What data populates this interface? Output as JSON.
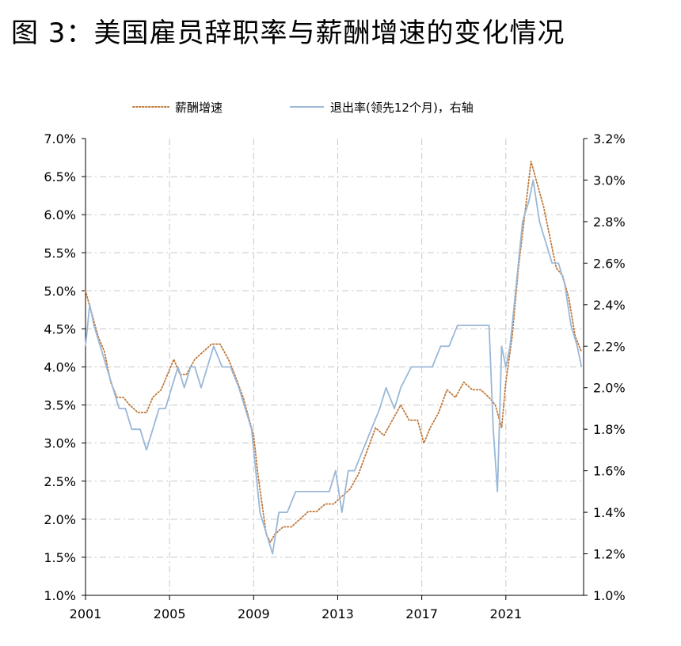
{
  "title": "图 3：美国雇员辞职率与薪酬增速的变化情况",
  "chart_data": {
    "type": "line",
    "x_range": [
      2001,
      2024.7
    ],
    "x_ticks": [
      "2001",
      "2005",
      "2009",
      "2013",
      "2017",
      "2021"
    ],
    "y_left_ticks": [
      "7.0%",
      "6.5%",
      "6.0%",
      "5.5%",
      "5.0%",
      "4.5%",
      "4.0%",
      "3.5%",
      "3.0%",
      "2.5%",
      "2.0%",
      "1.5%",
      "1.0%"
    ],
    "y_right_ticks": [
      "3.2%",
      "3.0%",
      "2.8%",
      "2.6%",
      "2.4%",
      "2.2%",
      "2.0%",
      "1.8%",
      "1.6%",
      "1.4%",
      "1.2%",
      "1.0%"
    ],
    "y_left_range": [
      1.0,
      7.0
    ],
    "y_right_range": [
      1.0,
      3.2
    ],
    "grid": true,
    "legend_position": "top",
    "series": [
      {
        "name": "薪酬增速",
        "axis": "left",
        "color": "#c0783a",
        "style": "dotted",
        "points": [
          [
            2001.0,
            5.0
          ],
          [
            2001.3,
            4.7
          ],
          [
            2001.6,
            4.4
          ],
          [
            2001.9,
            4.2
          ],
          [
            2002.2,
            3.8
          ],
          [
            2002.5,
            3.6
          ],
          [
            2002.8,
            3.6
          ],
          [
            2003.1,
            3.5
          ],
          [
            2003.5,
            3.4
          ],
          [
            2003.9,
            3.4
          ],
          [
            2004.2,
            3.6
          ],
          [
            2004.6,
            3.7
          ],
          [
            2004.9,
            3.9
          ],
          [
            2005.2,
            4.1
          ],
          [
            2005.5,
            3.9
          ],
          [
            2005.8,
            3.9
          ],
          [
            2006.2,
            4.1
          ],
          [
            2006.6,
            4.2
          ],
          [
            2007.0,
            4.3
          ],
          [
            2007.4,
            4.3
          ],
          [
            2007.8,
            4.1
          ],
          [
            2008.1,
            3.9
          ],
          [
            2008.5,
            3.6
          ],
          [
            2008.8,
            3.3
          ],
          [
            2009.0,
            3.1
          ],
          [
            2009.2,
            2.6
          ],
          [
            2009.4,
            2.2
          ],
          [
            2009.6,
            1.8
          ],
          [
            2009.8,
            1.7
          ],
          [
            2010.0,
            1.8
          ],
          [
            2010.4,
            1.9
          ],
          [
            2010.8,
            1.9
          ],
          [
            2011.2,
            2.0
          ],
          [
            2011.6,
            2.1
          ],
          [
            2012.0,
            2.1
          ],
          [
            2012.4,
            2.2
          ],
          [
            2012.8,
            2.2
          ],
          [
            2013.2,
            2.3
          ],
          [
            2013.6,
            2.4
          ],
          [
            2014.0,
            2.6
          ],
          [
            2014.4,
            2.9
          ],
          [
            2014.8,
            3.2
          ],
          [
            2015.2,
            3.1
          ],
          [
            2015.6,
            3.3
          ],
          [
            2016.0,
            3.5
          ],
          [
            2016.4,
            3.3
          ],
          [
            2016.8,
            3.3
          ],
          [
            2017.1,
            3.0
          ],
          [
            2017.4,
            3.2
          ],
          [
            2017.8,
            3.4
          ],
          [
            2018.2,
            3.7
          ],
          [
            2018.6,
            3.6
          ],
          [
            2019.0,
            3.8
          ],
          [
            2019.4,
            3.7
          ],
          [
            2019.8,
            3.7
          ],
          [
            2020.2,
            3.6
          ],
          [
            2020.5,
            3.5
          ],
          [
            2020.8,
            3.2
          ],
          [
            2021.0,
            3.8
          ],
          [
            2021.3,
            4.4
          ],
          [
            2021.6,
            5.3
          ],
          [
            2021.9,
            6.0
          ],
          [
            2022.2,
            6.7
          ],
          [
            2022.5,
            6.4
          ],
          [
            2022.8,
            6.1
          ],
          [
            2023.1,
            5.7
          ],
          [
            2023.4,
            5.3
          ],
          [
            2023.7,
            5.2
          ],
          [
            2024.0,
            4.9
          ],
          [
            2024.3,
            4.4
          ],
          [
            2024.6,
            4.2
          ]
        ]
      },
      {
        "name": "退出率(领先12个月)，右轴",
        "axis": "right",
        "color": "#9ab8d8",
        "style": "solid",
        "points": [
          [
            2001.0,
            2.2
          ],
          [
            2001.2,
            2.4
          ],
          [
            2001.4,
            2.3
          ],
          [
            2001.7,
            2.2
          ],
          [
            2002.0,
            2.1
          ],
          [
            2002.3,
            2.0
          ],
          [
            2002.6,
            1.9
          ],
          [
            2002.9,
            1.9
          ],
          [
            2003.2,
            1.8
          ],
          [
            2003.6,
            1.8
          ],
          [
            2003.9,
            1.7
          ],
          [
            2004.2,
            1.8
          ],
          [
            2004.5,
            1.9
          ],
          [
            2004.8,
            1.9
          ],
          [
            2005.1,
            2.0
          ],
          [
            2005.4,
            2.1
          ],
          [
            2005.7,
            2.0
          ],
          [
            2006.0,
            2.1
          ],
          [
            2006.2,
            2.1
          ],
          [
            2006.5,
            2.0
          ],
          [
            2006.8,
            2.1
          ],
          [
            2007.1,
            2.2
          ],
          [
            2007.5,
            2.1
          ],
          [
            2007.9,
            2.1
          ],
          [
            2008.3,
            2.0
          ],
          [
            2008.6,
            1.9
          ],
          [
            2008.9,
            1.8
          ],
          [
            2009.1,
            1.6
          ],
          [
            2009.3,
            1.4
          ],
          [
            2009.6,
            1.3
          ],
          [
            2009.9,
            1.2
          ],
          [
            2010.2,
            1.4
          ],
          [
            2010.6,
            1.4
          ],
          [
            2011.0,
            1.5
          ],
          [
            2011.4,
            1.5
          ],
          [
            2011.8,
            1.5
          ],
          [
            2012.2,
            1.5
          ],
          [
            2012.6,
            1.5
          ],
          [
            2012.9,
            1.6
          ],
          [
            2013.2,
            1.4
          ],
          [
            2013.5,
            1.6
          ],
          [
            2013.8,
            1.6
          ],
          [
            2014.2,
            1.7
          ],
          [
            2014.6,
            1.8
          ],
          [
            2015.0,
            1.9
          ],
          [
            2015.3,
            2.0
          ],
          [
            2015.7,
            1.9
          ],
          [
            2016.0,
            2.0
          ],
          [
            2016.5,
            2.1
          ],
          [
            2017.0,
            2.1
          ],
          [
            2017.5,
            2.1
          ],
          [
            2017.9,
            2.2
          ],
          [
            2018.3,
            2.2
          ],
          [
            2018.7,
            2.3
          ],
          [
            2019.1,
            2.3
          ],
          [
            2019.5,
            2.3
          ],
          [
            2019.9,
            2.3
          ],
          [
            2020.2,
            2.3
          ],
          [
            2020.4,
            1.8
          ],
          [
            2020.6,
            1.5
          ],
          [
            2020.8,
            2.2
          ],
          [
            2021.0,
            2.1
          ],
          [
            2021.2,
            2.2
          ],
          [
            2021.4,
            2.4
          ],
          [
            2021.6,
            2.6
          ],
          [
            2021.8,
            2.8
          ],
          [
            2022.1,
            2.9
          ],
          [
            2022.3,
            3.0
          ],
          [
            2022.6,
            2.8
          ],
          [
            2022.9,
            2.7
          ],
          [
            2023.2,
            2.6
          ],
          [
            2023.5,
            2.6
          ],
          [
            2023.8,
            2.5
          ],
          [
            2024.1,
            2.3
          ],
          [
            2024.4,
            2.2
          ],
          [
            2024.6,
            2.1
          ]
        ]
      }
    ]
  }
}
